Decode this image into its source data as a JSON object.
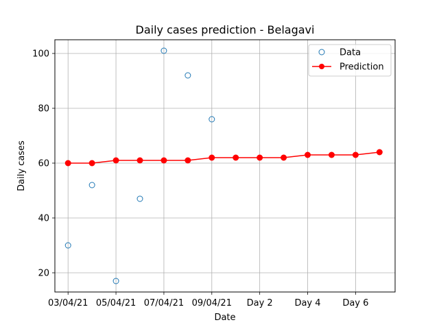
{
  "chart_data": {
    "type": "line",
    "title": "Daily cases prediction - Belagavi",
    "xlabel": "Date",
    "ylabel": "Daily cases",
    "x_positions": [
      0,
      1,
      2,
      3,
      4,
      5,
      6,
      7,
      8,
      9,
      10,
      11,
      12,
      13
    ],
    "xticks": [
      {
        "pos": 0,
        "label": "03/04/21"
      },
      {
        "pos": 2,
        "label": "05/04/21"
      },
      {
        "pos": 4,
        "label": "07/04/21"
      },
      {
        "pos": 6,
        "label": "09/04/21"
      },
      {
        "pos": 8,
        "label": "Day 2"
      },
      {
        "pos": 10,
        "label": "Day 4"
      },
      {
        "pos": 12,
        "label": "Day 6"
      }
    ],
    "yticks": [
      20,
      40,
      60,
      80,
      100
    ],
    "xlim": [
      -0.55,
      13.65
    ],
    "ylim": [
      13,
      105
    ],
    "grid": true,
    "legend_position": "top-right",
    "series": [
      {
        "name": "Data",
        "style": "hollow-circle-markers",
        "color": "#1f77b4",
        "x": [
          0,
          1,
          2,
          3,
          4,
          5,
          6
        ],
        "values": [
          30,
          52,
          17,
          47,
          101,
          92,
          76
        ]
      },
      {
        "name": "Prediction",
        "style": "line-with-filled-markers",
        "color": "#ff0000",
        "x": [
          0,
          1,
          2,
          3,
          4,
          5,
          6,
          7,
          8,
          9,
          10,
          11,
          12,
          13
        ],
        "values": [
          60,
          60,
          61,
          61,
          61,
          61,
          62,
          62,
          62,
          62,
          63,
          63,
          63,
          64
        ]
      }
    ]
  }
}
